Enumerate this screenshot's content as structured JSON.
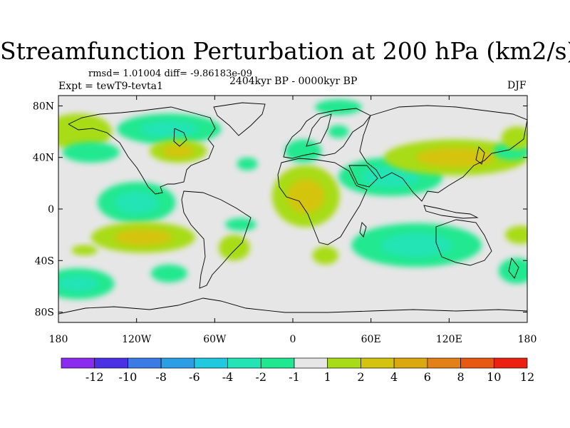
{
  "title": "Streamfunction Perturbation at 200 hPa (km2/s)",
  "stats_line": "rmsd= 1.01004 diff= -9.86183e-09",
  "period_line": "2404kyr BP - 0000kyr BP",
  "experiment_line": "Expt = tewT9-tevta1",
  "season": "DJF",
  "lat_ticks": [
    "80N",
    "40N",
    "0",
    "40S",
    "80S"
  ],
  "lon_ticks": [
    "180",
    "120W",
    "60W",
    "0",
    "60E",
    "120E",
    "180"
  ],
  "colorbar": {
    "labels": [
      "-12",
      "-10",
      "-8",
      "-6",
      "-4",
      "-2",
      "-1",
      "1",
      "2",
      "4",
      "6",
      "8",
      "10",
      "12"
    ],
    "colors": [
      "#8c2bf0",
      "#4b30e6",
      "#3b7be6",
      "#2a9fe6",
      "#20c8e0",
      "#22e4b4",
      "#20e890",
      "#e6e6e6",
      "#a8dc18",
      "#d4c410",
      "#dca810",
      "#e48018",
      "#e85810",
      "#ec2010"
    ]
  },
  "field": [
    {
      "lon": -165,
      "lat": 60,
      "value": 1.6,
      "rlon": 26,
      "rlat": 14
    },
    {
      "lon": -155,
      "lat": 44,
      "value": -1.5,
      "rlon": 22,
      "rlat": 8
    },
    {
      "lon": -95,
      "lat": 62,
      "value": -2.5,
      "rlon": 40,
      "rlat": 12
    },
    {
      "lon": -88,
      "lat": 45,
      "value": 2.8,
      "rlon": 22,
      "rlat": 9
    },
    {
      "lon": -35,
      "lat": 35,
      "value": -1.5,
      "rlon": 8,
      "rlat": 5
    },
    {
      "lon": -120,
      "lat": 5,
      "value": -3.5,
      "rlon": 30,
      "rlat": 16
    },
    {
      "lon": -115,
      "lat": -22,
      "value": 3.5,
      "rlon": 40,
      "rlat": 12
    },
    {
      "lon": -160,
      "lat": -32,
      "value": 1.5,
      "rlon": 10,
      "rlat": 4
    },
    {
      "lon": -45,
      "lat": -30,
      "value": 1.6,
      "rlon": 12,
      "rlat": 10
    },
    {
      "lon": -95,
      "lat": -50,
      "value": -1.5,
      "rlon": 14,
      "rlat": 7
    },
    {
      "lon": -165,
      "lat": -58,
      "value": -2.8,
      "rlon": 28,
      "rlat": 12
    },
    {
      "lon": -40,
      "lat": -12,
      "value": -1.5,
      "rlon": 12,
      "rlat": 5
    },
    {
      "lon": 10,
      "lat": 10,
      "value": 3.0,
      "rlon": 26,
      "rlat": 24
    },
    {
      "lon": 8,
      "lat": 45,
      "value": -1.5,
      "rlon": 14,
      "rlat": 9
    },
    {
      "lon": 35,
      "lat": 79,
      "value": -1.5,
      "rlon": 18,
      "rlat": 6
    },
    {
      "lon": 35,
      "lat": 60,
      "value": -1.2,
      "rlon": 8,
      "rlat": 5
    },
    {
      "lon": 25,
      "lat": -36,
      "value": 1.6,
      "rlon": 10,
      "rlat": 7
    },
    {
      "lon": 75,
      "lat": 25,
      "value": -3.2,
      "rlon": 40,
      "rlat": 15
    },
    {
      "lon": 95,
      "lat": -28,
      "value": -3.5,
      "rlon": 50,
      "rlat": 17
    },
    {
      "lon": 125,
      "lat": 40,
      "value": 2.2,
      "rlon": 55,
      "rlat": 14
    },
    {
      "lon": 168,
      "lat": 45,
      "value": -1.5,
      "rlon": 14,
      "rlat": 7
    },
    {
      "lon": 172,
      "lat": 55,
      "value": 1.6,
      "rlon": 12,
      "rlat": 9
    },
    {
      "lon": 175,
      "lat": -20,
      "value": 1.6,
      "rlon": 12,
      "rlat": 7
    },
    {
      "lon": 172,
      "lat": -48,
      "value": -1.6,
      "rlon": 14,
      "rlat": 10
    }
  ]
}
